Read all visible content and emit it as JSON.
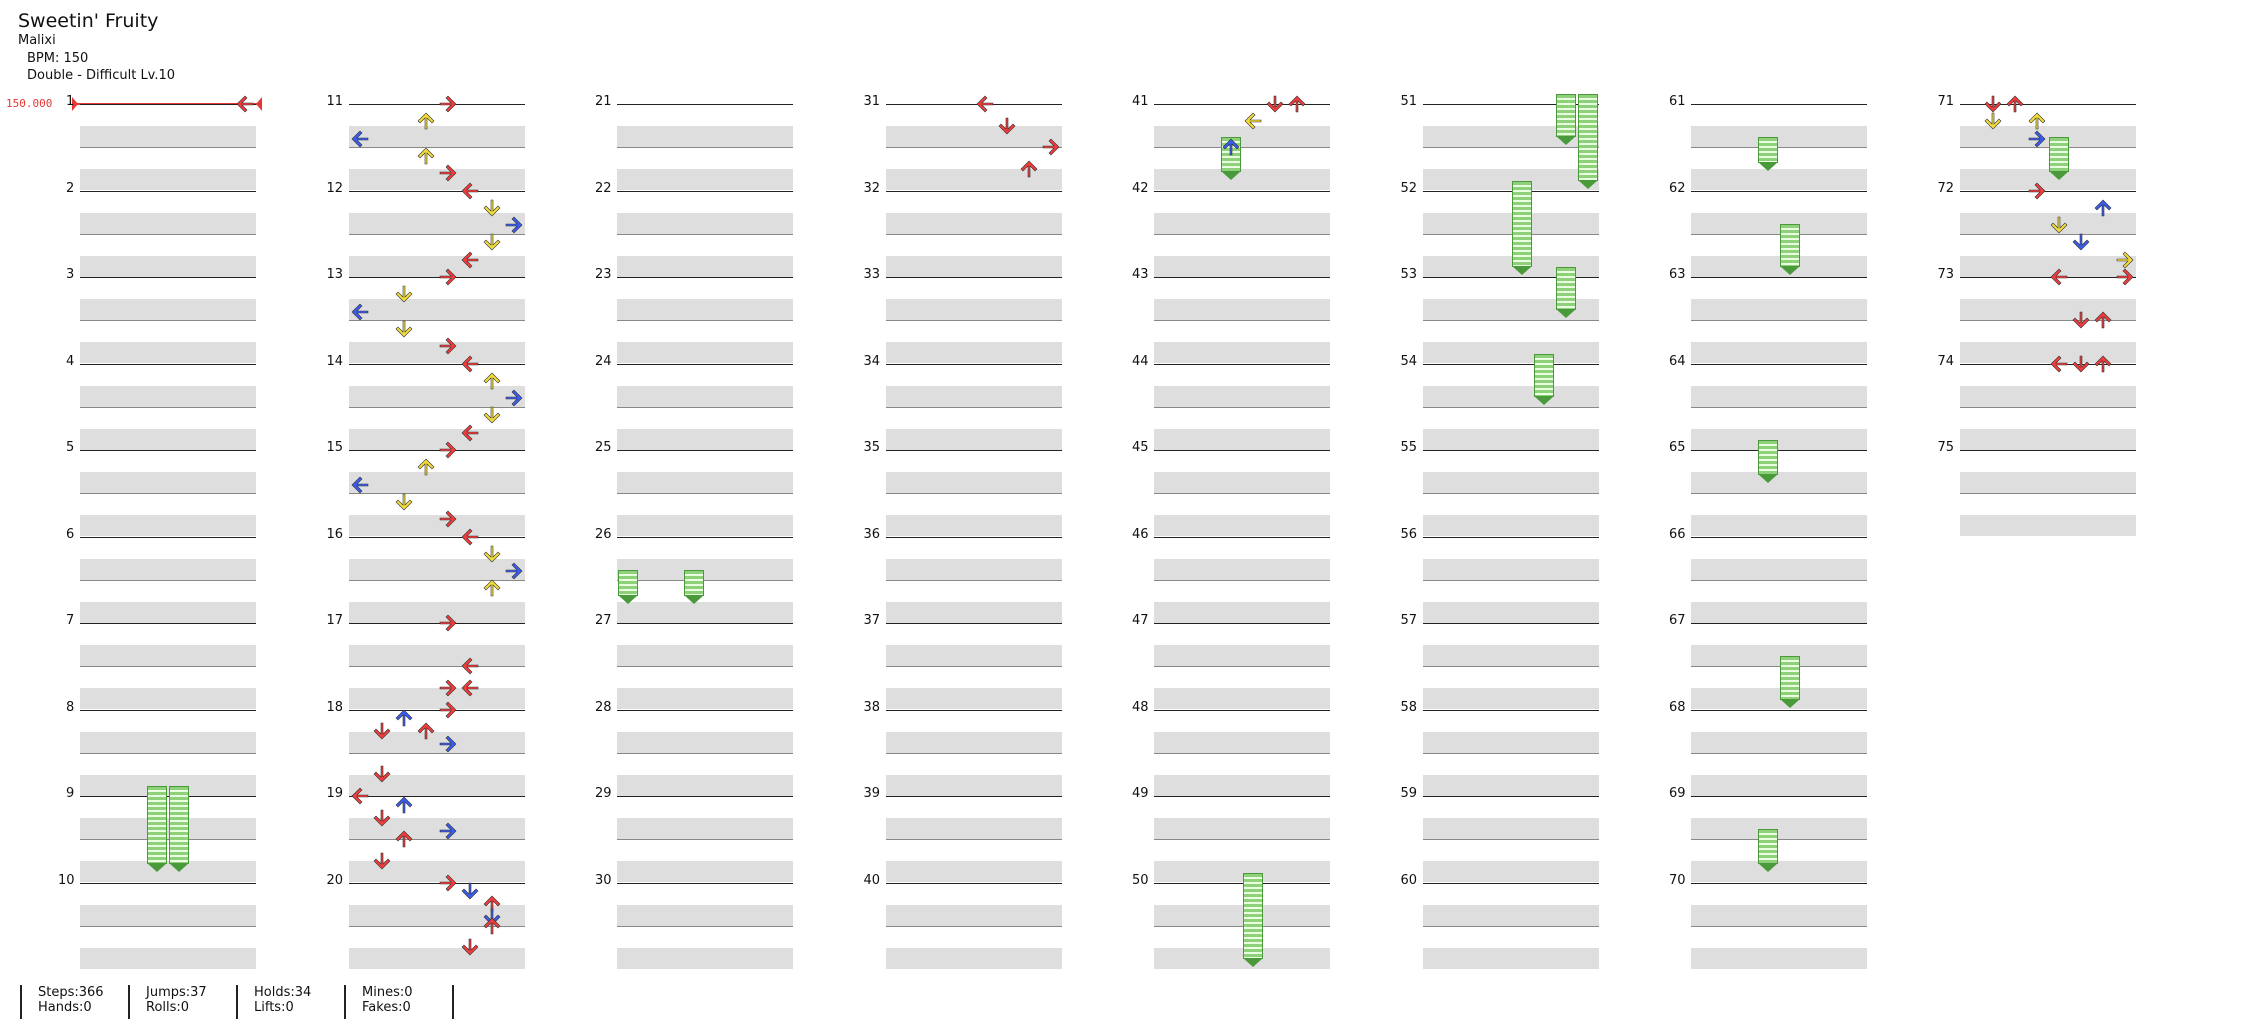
{
  "header": {
    "title": "Sweetin' Fruity",
    "artist": "Malixi",
    "bpm": "BPM: 150",
    "chart": "Double - Difficult  Lv.10"
  },
  "bpm_change_label": "150.000",
  "colors": {
    "red": "#f03c3c",
    "blue": "#3a5df0",
    "yellow": "#f2dc3a",
    "hold": "#8fd17a",
    "stripe": "#dedede"
  },
  "columns": {
    "measure_starts": [
      1,
      11,
      21,
      31,
      41,
      51,
      61,
      71
    ],
    "last_measure": 75
  },
  "notes": [
    {
      "m": 1.0,
      "lane": 7,
      "d": "left",
      "c": "red"
    },
    {
      "m": 11.0,
      "lane": 4,
      "d": "right",
      "c": "red"
    },
    {
      "m": 11.2,
      "lane": 3,
      "d": "up",
      "c": "yellow"
    },
    {
      "m": 11.4,
      "lane": 0,
      "d": "left",
      "c": "blue"
    },
    {
      "m": 11.6,
      "lane": 3,
      "d": "up",
      "c": "yellow"
    },
    {
      "m": 11.8,
      "lane": 4,
      "d": "right",
      "c": "red"
    },
    {
      "m": 12.0,
      "lane": 5,
      "d": "left",
      "c": "red"
    },
    {
      "m": 12.2,
      "lane": 6,
      "d": "down",
      "c": "yellow"
    },
    {
      "m": 12.4,
      "lane": 7,
      "d": "right",
      "c": "blue"
    },
    {
      "m": 12.6,
      "lane": 6,
      "d": "down",
      "c": "yellow"
    },
    {
      "m": 12.8,
      "lane": 5,
      "d": "left",
      "c": "red"
    },
    {
      "m": 13.0,
      "lane": 4,
      "d": "right",
      "c": "red"
    },
    {
      "m": 13.2,
      "lane": 2,
      "d": "down",
      "c": "yellow"
    },
    {
      "m": 13.4,
      "lane": 0,
      "d": "left",
      "c": "blue"
    },
    {
      "m": 13.6,
      "lane": 2,
      "d": "down",
      "c": "yellow"
    },
    {
      "m": 13.8,
      "lane": 4,
      "d": "right",
      "c": "red"
    },
    {
      "m": 14.0,
      "lane": 5,
      "d": "left",
      "c": "red"
    },
    {
      "m": 14.2,
      "lane": 6,
      "d": "up",
      "c": "yellow"
    },
    {
      "m": 14.4,
      "lane": 7,
      "d": "right",
      "c": "blue"
    },
    {
      "m": 14.6,
      "lane": 6,
      "d": "down",
      "c": "yellow"
    },
    {
      "m": 14.8,
      "lane": 5,
      "d": "left",
      "c": "red"
    },
    {
      "m": 15.0,
      "lane": 4,
      "d": "right",
      "c": "red"
    },
    {
      "m": 15.2,
      "lane": 3,
      "d": "up",
      "c": "yellow"
    },
    {
      "m": 15.4,
      "lane": 0,
      "d": "left",
      "c": "blue"
    },
    {
      "m": 15.6,
      "lane": 2,
      "d": "down",
      "c": "yellow"
    },
    {
      "m": 15.8,
      "lane": 4,
      "d": "right",
      "c": "red"
    },
    {
      "m": 16.0,
      "lane": 5,
      "d": "left",
      "c": "red"
    },
    {
      "m": 16.2,
      "lane": 6,
      "d": "down",
      "c": "yellow"
    },
    {
      "m": 16.4,
      "lane": 7,
      "d": "right",
      "c": "blue"
    },
    {
      "m": 16.6,
      "lane": 6,
      "d": "up",
      "c": "yellow"
    },
    {
      "m": 17.0,
      "lane": 4,
      "d": "right",
      "c": "red"
    },
    {
      "m": 17.5,
      "lane": 5,
      "d": "left",
      "c": "red"
    },
    {
      "m": 17.75,
      "lane": 5,
      "d": "left",
      "c": "red"
    },
    {
      "m": 17.75,
      "lane": 4,
      "d": "right",
      "c": "red"
    },
    {
      "m": 18.0,
      "lane": 4,
      "d": "right",
      "c": "red"
    },
    {
      "m": 18.1,
      "lane": 2,
      "d": "up",
      "c": "blue"
    },
    {
      "m": 18.25,
      "lane": 1,
      "d": "down",
      "c": "red"
    },
    {
      "m": 18.25,
      "lane": 3,
      "d": "up",
      "c": "red"
    },
    {
      "m": 18.4,
      "lane": 4,
      "d": "right",
      "c": "blue"
    },
    {
      "m": 18.75,
      "lane": 1,
      "d": "down",
      "c": "red"
    },
    {
      "m": 19.0,
      "lane": 0,
      "d": "left",
      "c": "red"
    },
    {
      "m": 19.1,
      "lane": 2,
      "d": "up",
      "c": "blue"
    },
    {
      "m": 19.25,
      "lane": 1,
      "d": "down",
      "c": "red"
    },
    {
      "m": 19.4,
      "lane": 4,
      "d": "right",
      "c": "blue"
    },
    {
      "m": 19.5,
      "lane": 2,
      "d": "up",
      "c": "red"
    },
    {
      "m": 19.75,
      "lane": 1,
      "d": "down",
      "c": "red"
    },
    {
      "m": 20.0,
      "lane": 4,
      "d": "right",
      "c": "red"
    },
    {
      "m": 20.1,
      "lane": 5,
      "d": "down",
      "c": "blue"
    },
    {
      "m": 20.25,
      "lane": 6,
      "d": "up",
      "c": "red"
    },
    {
      "m": 20.4,
      "lane": 6,
      "d": "down",
      "c": "blue"
    },
    {
      "m": 20.5,
      "lane": 6,
      "d": "up",
      "c": "red"
    },
    {
      "m": 20.75,
      "lane": 5,
      "d": "down",
      "c": "red"
    },
    {
      "m": 31.0,
      "lane": 4,
      "d": "left",
      "c": "red"
    },
    {
      "m": 31.25,
      "lane": 5,
      "d": "down",
      "c": "red"
    },
    {
      "m": 31.5,
      "lane": 7,
      "d": "right",
      "c": "red"
    },
    {
      "m": 31.75,
      "lane": 6,
      "d": "up",
      "c": "red"
    },
    {
      "m": 41.0,
      "lane": 5,
      "d": "down",
      "c": "red"
    },
    {
      "m": 41.0,
      "lane": 6,
      "d": "up",
      "c": "red"
    },
    {
      "m": 41.2,
      "lane": 4,
      "d": "left",
      "c": "yellow"
    },
    {
      "m": 41.5,
      "lane": 3,
      "d": "up",
      "c": "blue"
    },
    {
      "m": 71.0,
      "lane": 1,
      "d": "down",
      "c": "red"
    },
    {
      "m": 71.0,
      "lane": 2,
      "d": "up",
      "c": "red"
    },
    {
      "m": 71.2,
      "lane": 1,
      "d": "down",
      "c": "yellow"
    },
    {
      "m": 71.2,
      "lane": 3,
      "d": "up",
      "c": "yellow"
    },
    {
      "m": 71.4,
      "lane": 3,
      "d": "right",
      "c": "blue"
    },
    {
      "m": 72.0,
      "lane": 3,
      "d": "right",
      "c": "red"
    },
    {
      "m": 72.2,
      "lane": 6,
      "d": "up",
      "c": "blue"
    },
    {
      "m": 72.4,
      "lane": 4,
      "d": "down",
      "c": "yellow"
    },
    {
      "m": 72.6,
      "lane": 5,
      "d": "down",
      "c": "blue"
    },
    {
      "m": 72.8,
      "lane": 7,
      "d": "right",
      "c": "yellow"
    },
    {
      "m": 73.0,
      "lane": 4,
      "d": "left",
      "c": "red"
    },
    {
      "m": 73.0,
      "lane": 7,
      "d": "right",
      "c": "red"
    },
    {
      "m": 73.5,
      "lane": 5,
      "d": "down",
      "c": "red"
    },
    {
      "m": 73.5,
      "lane": 6,
      "d": "up",
      "c": "red"
    },
    {
      "m": 74.0,
      "lane": 4,
      "d": "left",
      "c": "red"
    },
    {
      "m": 74.0,
      "lane": 5,
      "d": "down",
      "c": "red"
    },
    {
      "m": 74.0,
      "lane": 6,
      "d": "up",
      "c": "red"
    }
  ],
  "holds": [
    {
      "m": 9.0,
      "lane": 3,
      "len": 0.9
    },
    {
      "m": 9.0,
      "lane": 4,
      "len": 0.9
    },
    {
      "m": 26.5,
      "lane": 0,
      "len": 0.3
    },
    {
      "m": 26.5,
      "lane": 3,
      "len": 0.3
    },
    {
      "m": 41.5,
      "lane": 3,
      "len": 0.4
    },
    {
      "m": 50.0,
      "lane": 4,
      "len": 1.0
    },
    {
      "m": 51.0,
      "lane": 6,
      "len": 0.5
    },
    {
      "m": 51.0,
      "lane": 7,
      "len": 1.0
    },
    {
      "m": 52.0,
      "lane": 4,
      "len": 1.0
    },
    {
      "m": 53.0,
      "lane": 6,
      "len": 0.5
    },
    {
      "m": 54.0,
      "lane": 5,
      "len": 0.5
    },
    {
      "m": 61.5,
      "lane": 3,
      "len": 0.3
    },
    {
      "m": 62.5,
      "lane": 4,
      "len": 0.5
    },
    {
      "m": 65.0,
      "lane": 3,
      "len": 0.4
    },
    {
      "m": 67.5,
      "lane": 4,
      "len": 0.5
    },
    {
      "m": 69.5,
      "lane": 3,
      "len": 0.4
    },
    {
      "m": 71.5,
      "lane": 4,
      "len": 0.4
    }
  ],
  "stats": [
    {
      "a": "Steps:366",
      "b": "Hands:0"
    },
    {
      "a": "Jumps:37",
      "b": "Rolls:0"
    },
    {
      "a": "Holds:34",
      "b": "Lifts:0"
    },
    {
      "a": "Mines:0",
      "b": "Fakes:0"
    }
  ]
}
